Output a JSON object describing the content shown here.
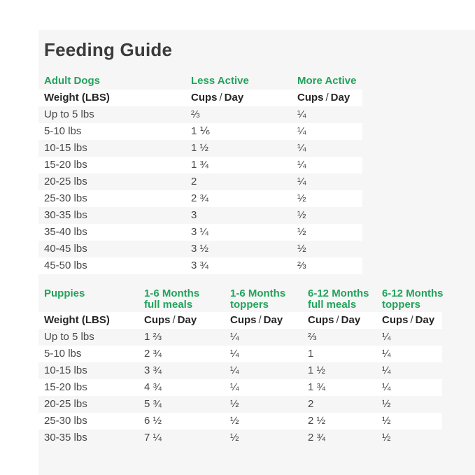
{
  "title": "Feeding Guide",
  "colors": {
    "accent_green": "#23a35b",
    "panel_background": "#f6f6f6",
    "stripe_white": "#ffffff",
    "title_text": "#3b3b3b",
    "body_text": "#474747"
  },
  "labels": {
    "weight_header": "Weight (LBS)",
    "cups": "Cups",
    "slash": "/",
    "day": "Day"
  },
  "adult": {
    "section_label": "Adult Dogs",
    "columns": [
      "Less Active",
      "More Active"
    ],
    "rows": [
      {
        "weight": "Up to 5 lbs",
        "values": [
          "⅔",
          "¼"
        ]
      },
      {
        "weight": "5-10 lbs",
        "values": [
          "1 ⅙",
          "¼"
        ]
      },
      {
        "weight": "10-15 lbs",
        "values": [
          "1 ½",
          "¼"
        ]
      },
      {
        "weight": "15-20 lbs",
        "values": [
          "1 ¾",
          "¼"
        ]
      },
      {
        "weight": "20-25 lbs",
        "values": [
          "2",
          "¼"
        ]
      },
      {
        "weight": "25-30 lbs",
        "values": [
          "2 ¾",
          "½"
        ]
      },
      {
        "weight": "30-35 lbs",
        "values": [
          "3",
          "½"
        ]
      },
      {
        "weight": "35-40 lbs",
        "values": [
          "3 ¼",
          "½"
        ]
      },
      {
        "weight": "40-45 lbs",
        "values": [
          "3 ½",
          "½"
        ]
      },
      {
        "weight": "45-50 lbs",
        "values": [
          "3 ¾",
          "⅔"
        ]
      }
    ]
  },
  "puppies": {
    "section_label": "Puppies",
    "columns": [
      {
        "line1": "1-6 Months",
        "line2": "full meals"
      },
      {
        "line1": "1-6 Months",
        "line2": "toppers"
      },
      {
        "line1": "6-12 Months",
        "line2": "full meals"
      },
      {
        "line1": "6-12 Months",
        "line2": "toppers"
      }
    ],
    "rows": [
      {
        "weight": "Up to 5 lbs",
        "values": [
          "1 ⅔",
          "¼",
          "⅔",
          "¼"
        ]
      },
      {
        "weight": "5-10 lbs",
        "values": [
          "2 ¾",
          "¼",
          "1",
          "¼"
        ]
      },
      {
        "weight": "10-15 lbs",
        "values": [
          "3 ¾",
          "¼",
          "1 ½",
          "¼"
        ]
      },
      {
        "weight": "15-20 lbs",
        "values": [
          "4 ¾",
          "¼",
          "1 ¾",
          "¼"
        ]
      },
      {
        "weight": "20-25 lbs",
        "values": [
          "5 ¾",
          "½",
          "2",
          "½"
        ]
      },
      {
        "weight": "25-30 lbs",
        "values": [
          "6 ½",
          "½",
          "2 ½",
          "½"
        ]
      },
      {
        "weight": "30-35 lbs",
        "values": [
          "7 ¼",
          "½",
          "2 ¾",
          "½"
        ]
      }
    ]
  }
}
